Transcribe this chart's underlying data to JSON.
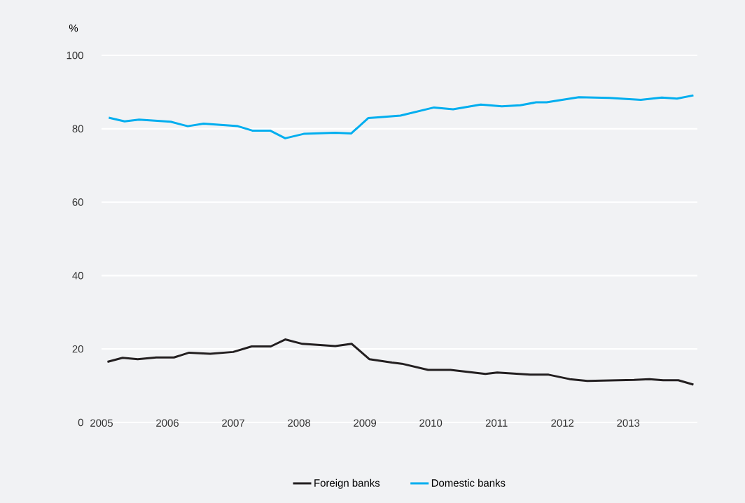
{
  "chart_data": {
    "type": "line",
    "ylabel": "%",
    "xlim": [
      2005,
      2014.05
    ],
    "ylim": [
      0,
      100
    ],
    "xticks": [
      2005,
      2006,
      2007,
      2008,
      2009,
      2010,
      2011,
      2012,
      2013
    ],
    "yticks": [
      0,
      20,
      40,
      60,
      80,
      100
    ],
    "grid": "y",
    "legend": "bottom",
    "marker": "none",
    "line_style": "solid",
    "series": [
      {
        "name": "Foreign banks",
        "color": "#231f20",
        "x": [
          2005.09,
          2005.32,
          2005.55,
          2005.83,
          2006.1,
          2006.33,
          2006.65,
          2007.0,
          2007.28,
          2007.57,
          2007.79,
          2008.05,
          2008.55,
          2008.8,
          2009.07,
          2009.41,
          2009.56,
          2009.96,
          2010.3,
          2010.83,
          2011.01,
          2011.51,
          2011.79,
          2012.11,
          2012.38,
          2013.09,
          2013.32,
          2013.53,
          2013.76,
          2013.99
        ],
        "values": [
          16.5,
          17.6,
          17.2,
          17.7,
          17.7,
          19.0,
          18.7,
          19.2,
          20.7,
          20.7,
          22.6,
          21.4,
          20.8,
          21.4,
          17.2,
          16.3,
          16.0,
          14.3,
          14.3,
          13.2,
          13.6,
          13.0,
          13.0,
          11.8,
          11.3,
          11.6,
          11.8,
          11.5,
          11.5,
          10.3
        ]
      },
      {
        "name": "Domestic banks",
        "color": "#00aeef",
        "x": [
          2005.11,
          2005.35,
          2005.57,
          2006.05,
          2006.31,
          2006.55,
          2007.07,
          2007.29,
          2007.56,
          2007.79,
          2008.07,
          2008.55,
          2008.79,
          2009.05,
          2009.2,
          2009.54,
          2010.05,
          2010.34,
          2010.76,
          2011.08,
          2011.36,
          2011.6,
          2011.76,
          2012.25,
          2012.71,
          2013.19,
          2013.51,
          2013.74,
          2013.99
        ],
        "values": [
          83.0,
          82.0,
          82.5,
          81.9,
          80.7,
          81.4,
          80.7,
          79.5,
          79.5,
          77.4,
          78.6,
          78.9,
          78.7,
          82.9,
          83.1,
          83.6,
          85.8,
          85.3,
          86.6,
          86.1,
          86.4,
          87.2,
          87.2,
          88.6,
          88.4,
          87.9,
          88.5,
          88.2,
          89.1
        ]
      }
    ]
  }
}
